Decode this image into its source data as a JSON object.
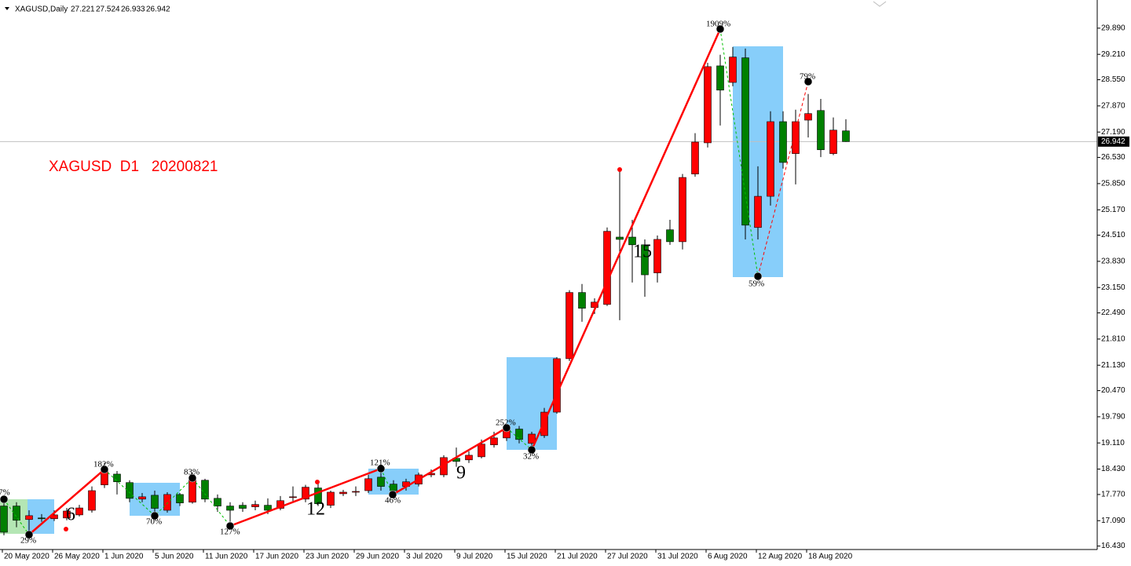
{
  "chart_data": {
    "type": "candlestick",
    "title": "XAGUSD,Daily",
    "annotation": "XAGUSD  D1   20200821",
    "categories": [
      "20 May 2020",
      null,
      null,
      null,
      "26 May 2020",
      null,
      null,
      null,
      "1 Jun 2020",
      null,
      null,
      null,
      "5 Jun 2020",
      null,
      null,
      null,
      "11 Jun 2020",
      null,
      null,
      null,
      "17 Jun 2020",
      null,
      null,
      null,
      "23 Jun 2020",
      null,
      null,
      null,
      "29 Jun 2020",
      null,
      null,
      null,
      "3 Jul 2020",
      null,
      null,
      null,
      "9 Jul 2020",
      null,
      null,
      null,
      "15 Jul 2020",
      null,
      null,
      null,
      "21 Jul 2020",
      null,
      null,
      null,
      "27 Jul 2020",
      null,
      null,
      null,
      "31 Jul 2020",
      null,
      null,
      null,
      "6 Aug 2020",
      null,
      null,
      null,
      "12 Aug 2020",
      null,
      null,
      null,
      "18 Aug 2020",
      null,
      null,
      null
    ],
    "open": [
      17.47,
      17.47,
      17.12,
      17.16,
      17.14,
      17.16,
      17.24,
      17.36,
      18.02,
      18.3,
      18.08,
      17.65,
      17.75,
      17.36,
      17.77,
      17.57,
      18.14,
      17.67,
      17.47,
      17.49,
      17.45,
      17.49,
      17.41,
      17.69,
      17.65,
      17.94,
      17.49,
      17.79,
      17.83,
      17.87,
      18.22,
      18.04,
      17.98,
      18.04,
      18.28,
      18.28,
      18.71,
      18.67,
      18.75,
      19.06,
      19.24,
      19.47,
      19.1,
      19.3,
      19.91,
      21.3,
      23.02,
      22.63,
      22.71,
      24.46,
      24.46,
      24.26,
      23.53,
      24.65,
      24.34,
      26.1,
      26.91,
      28.91,
      28.48,
      29.12,
      24.71,
      25.52,
      27.46,
      26.63,
      27.5,
      27.75,
      26.63,
      27.221
    ],
    "high": [
      17.73,
      17.57,
      17.36,
      17.26,
      17.36,
      17.42,
      17.5,
      17.98,
      18.59,
      18.38,
      18.14,
      17.81,
      17.87,
      17.83,
      17.81,
      18.34,
      18.18,
      17.77,
      17.57,
      17.57,
      17.61,
      17.67,
      17.73,
      17.98,
      18.02,
      18.08,
      17.87,
      17.89,
      17.98,
      18.28,
      18.42,
      18.14,
      18.18,
      18.34,
      18.42,
      18.79,
      18.99,
      18.89,
      19.2,
      19.4,
      19.61,
      19.55,
      19.4,
      20.02,
      21.34,
      23.08,
      23.24,
      22.87,
      24.71,
      26.24,
      24.91,
      24.4,
      24.5,
      24.91,
      26.1,
      27.16,
      28.99,
      29.2,
      29.4,
      29.36,
      26.3,
      27.73,
      27.73,
      27.77,
      28.18,
      28.05,
      27.57,
      27.524
    ],
    "low": [
      16.71,
      16.92,
      16.65,
      17.06,
      17.08,
      17.1,
      17.2,
      17.3,
      17.94,
      17.77,
      17.57,
      17.57,
      17.16,
      17.3,
      17.47,
      17.53,
      17.57,
      17.32,
      17.06,
      17.32,
      17.36,
      17.26,
      17.36,
      17.57,
      17.57,
      17.47,
      17.42,
      17.73,
      17.73,
      17.81,
      17.87,
      17.73,
      17.87,
      17.98,
      18.22,
      18.22,
      18.49,
      18.59,
      18.71,
      18.99,
      19.16,
      19.1,
      18.99,
      19.24,
      19.87,
      21.24,
      22.26,
      22.46,
      22.67,
      22.3,
      23.28,
      22.91,
      23.28,
      24.26,
      24.14,
      26.03,
      26.79,
      27.36,
      28.38,
      24.4,
      24.4,
      25.28,
      26.24,
      25.83,
      27.05,
      26.54,
      26.59,
      26.933
    ],
    "close": [
      16.79,
      17.1,
      17.22,
      17.14,
      17.24,
      17.34,
      17.42,
      17.87,
      18.43,
      18.1,
      17.67,
      17.71,
      17.41,
      17.77,
      17.55,
      18.22,
      17.65,
      17.47,
      17.36,
      17.41,
      17.51,
      17.36,
      17.61,
      17.71,
      17.96,
      17.53,
      17.83,
      17.83,
      17.85,
      18.18,
      17.98,
      17.87,
      18.1,
      18.28,
      18.32,
      18.73,
      18.63,
      18.79,
      19.08,
      19.24,
      19.51,
      19.2,
      19.34,
      19.91,
      21.3,
      23.02,
      22.61,
      22.77,
      24.61,
      24.4,
      24.26,
      23.48,
      24.4,
      24.34,
      26.01,
      26.93,
      28.89,
      28.28,
      29.14,
      24.77,
      25.52,
      27.46,
      26.4,
      27.46,
      27.67,
      26.73,
      27.24,
      26.942
    ],
    "up_color": "#ff0000",
    "down_color": "#008000",
    "ylim": [
      16.34,
      30.52
    ],
    "yticks": [
      {
        "value": 16.43,
        "label": "16.430"
      },
      {
        "value": 17.09,
        "label": "17.090"
      },
      {
        "value": 17.77,
        "label": "17.770"
      },
      {
        "value": 18.43,
        "label": "18.430"
      },
      {
        "value": 19.11,
        "label": "19.110"
      },
      {
        "value": 19.79,
        "label": "19.790"
      },
      {
        "value": 20.47,
        "label": "20.470"
      },
      {
        "value": 21.13,
        "label": "21.130"
      },
      {
        "value": 21.81,
        "label": "21.810"
      },
      {
        "value": 22.49,
        "label": "22.490"
      },
      {
        "value": 23.15,
        "label": "23.150"
      },
      {
        "value": 23.83,
        "label": "23.830"
      },
      {
        "value": 24.51,
        "label": "24.510"
      },
      {
        "value": 25.17,
        "label": "25.170"
      },
      {
        "value": 25.85,
        "label": "25.850"
      },
      {
        "value": 26.53,
        "label": "26.530"
      },
      {
        "value": 27.19,
        "label": "27.190"
      },
      {
        "value": 27.87,
        "label": "27.870"
      },
      {
        "value": 28.55,
        "label": "28.550"
      },
      {
        "value": 29.21,
        "label": "29.210"
      },
      {
        "value": 29.89,
        "label": "29.890"
      }
    ],
    "grid": false
  },
  "annotations": {
    "percent_labels": [
      "7%",
      "29%",
      "182%",
      "70%",
      "83%",
      "127%",
      "121%",
      "46%",
      "252%",
      "32%",
      "1909%",
      "79%",
      "59%"
    ],
    "wave_labels": [
      "6",
      "12",
      "9",
      "15"
    ]
  }
}
